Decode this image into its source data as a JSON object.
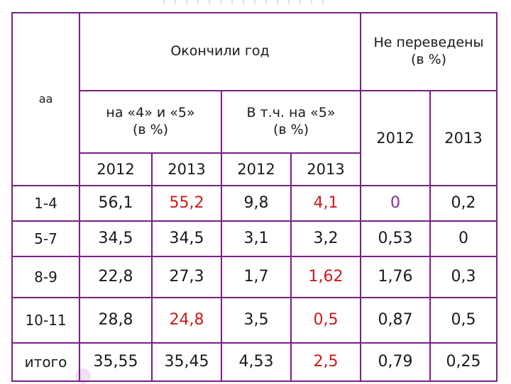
{
  "header": {
    "corner_label": "аа",
    "finished_year": "Окончили год",
    "not_promoted_line1": "Не переведены",
    "not_promoted_line2": "(в %)",
    "grades_45_line1": "на «4» и «5»",
    "grades_45_line2": "(в %)",
    "grades_5_line1": "В т.ч. на «5»",
    "grades_5_line2": "(в %)",
    "years": [
      "2012",
      "2013",
      "2012",
      "2013",
      "2012",
      "2013"
    ]
  },
  "rows": [
    {
      "label": "1-4",
      "values": [
        "56,1",
        "55,2",
        "9,8",
        "4,1",
        "0",
        "0,2"
      ]
    },
    {
      "label": "5-7",
      "values": [
        "34,5",
        "34,5",
        "3,1",
        "3,2",
        "0,53",
        "0"
      ]
    },
    {
      "label": "8-9",
      "values": [
        "22,8",
        "27,3",
        "1,7",
        "1,62",
        "1,76",
        "0,3"
      ]
    },
    {
      "label": "10-11",
      "values": [
        "28,8",
        "24,8",
        "3,5",
        "0,5",
        "0,87",
        "0,5"
      ]
    },
    {
      "label": "итого",
      "values": [
        "35,55",
        "35,45",
        "4,53",
        "2,5",
        "0,79",
        "0,25"
      ]
    }
  ],
  "colors": {
    "border": "#7a1f86",
    "highlight_red": "#cc1a1a",
    "highlight_purple": "#8a2aa0"
  }
}
